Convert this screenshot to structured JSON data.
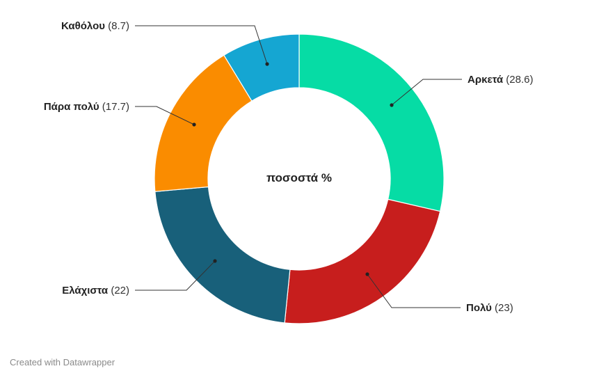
{
  "chart_data": {
    "type": "pie",
    "donut": true,
    "center_label": "ποσοστά %",
    "slices": [
      {
        "label": "Αρκετά",
        "value": 28.6,
        "value_text": "(28.6)",
        "color": "#06dca5"
      },
      {
        "label": "Πολύ",
        "value": 23,
        "value_text": "(23)",
        "color": "#c71e1d"
      },
      {
        "label": "Ελάχιστα",
        "value": 22,
        "value_text": "(22)",
        "color": "#18607a"
      },
      {
        "label": "Πάρα πολύ",
        "value": 17.7,
        "value_text": "(17.7)",
        "color": "#fa8c00"
      },
      {
        "label": "Καθόλου",
        "value": 8.7,
        "value_text": "(8.7)",
        "color": "#15a6d2"
      }
    ]
  },
  "footer": {
    "credit": "Created with Datawrapper"
  }
}
